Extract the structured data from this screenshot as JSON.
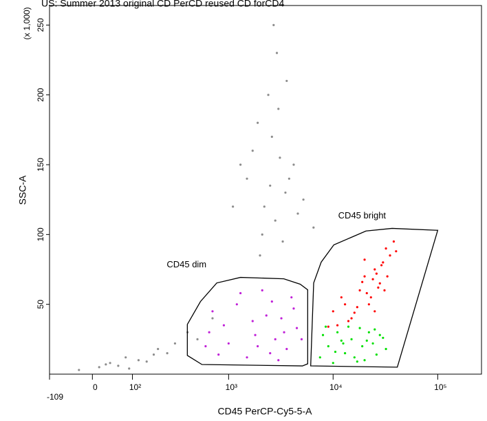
{
  "chart_data": {
    "type": "scatter",
    "title": "US: Summer 2013 original CD PerCD reused CD forCD4",
    "x_label": "CD45 PerCP-Cy5-5-A",
    "y_label": "SSC-A",
    "y_multiplier": "(x 1,000)",
    "xscale": "logicle",
    "xlim": [
      -109,
      262144
    ],
    "ylim": [
      0,
      264
    ],
    "xticks": [
      -109,
      0,
      {
        "value": 100,
        "label": "10²"
      },
      {
        "value": 1000,
        "label": "10³"
      },
      {
        "value": 10000,
        "label": "10⁴"
      },
      {
        "value": 100000,
        "label": "10⁵"
      }
    ],
    "yticks": [
      50,
      100,
      150,
      200,
      250
    ],
    "series": [
      {
        "color": "#8c8c8c",
        "x": [
          1500,
          2200,
          3100,
          2600,
          3500,
          1900,
          2800,
          4200,
          2400,
          3300,
          1700,
          5200,
          2900,
          3800,
          2100,
          3000,
          2500,
          4600,
          1300,
          3600,
          2000,
          2700,
          6500,
          1100,
          15,
          40,
          -30,
          80,
          120,
          60,
          200,
          300,
          150,
          90,
          250,
          400,
          30,
          500,
          700,
          180
        ],
        "y": [
          140,
          120,
          155,
          170,
          130,
          180,
          110,
          150,
          200,
          95,
          160,
          125,
          230,
          140,
          100,
          190,
          135,
          115,
          150,
          210,
          85,
          250,
          105,
          120,
          5,
          8,
          3,
          12,
          10,
          6,
          18,
          22,
          9,
          4,
          15,
          30,
          7,
          25,
          40,
          14
        ]
      },
      {
        "color": "#c020d8",
        "x": [
          600,
          900,
          1200,
          1800,
          2500,
          3200,
          4000,
          700,
          1500,
          2100,
          2800,
          3600,
          4500,
          1000,
          1300,
          2300,
          3000,
          800,
          1700,
          2600,
          3400,
          4200,
          650,
          1900,
          5000
        ],
        "y": [
          20,
          35,
          50,
          28,
          15,
          40,
          55,
          45,
          12,
          60,
          25,
          18,
          33,
          22,
          58,
          42,
          10,
          14,
          38,
          52,
          30,
          47,
          30,
          20,
          25
        ]
      },
      {
        "color": "#ff0000",
        "x": [
          10000,
          12000,
          15000,
          18000,
          20000,
          22000,
          25000,
          28000,
          30000,
          35000,
          14000,
          17000,
          21000,
          24000,
          27000,
          32000,
          40000,
          11000,
          13000,
          16000,
          19000,
          23000,
          26000,
          29000,
          33000,
          38000,
          9000,
          20000,
          25000,
          31000
        ],
        "y": [
          45,
          55,
          40,
          60,
          70,
          50,
          75,
          65,
          80,
          85,
          38,
          48,
          58,
          68,
          62,
          90,
          88,
          35,
          50,
          44,
          66,
          55,
          72,
          78,
          70,
          95,
          34,
          82,
          45,
          60
        ]
      },
      {
        "color": "#00e000",
        "x": [
          7500,
          9000,
          11000,
          13000,
          15000,
          18000,
          20000,
          24000,
          28000,
          32000,
          8000,
          10000,
          12000,
          14000,
          16000,
          19000,
          22000,
          26000,
          30000,
          8500,
          10500,
          17000,
          21000,
          25000,
          12500
        ],
        "y": [
          12,
          20,
          30,
          15,
          25,
          33,
          10,
          22,
          28,
          18,
          28,
          8,
          24,
          34,
          12,
          20,
          30,
          14,
          26,
          34,
          16,
          9,
          24,
          32,
          22
        ]
      }
    ],
    "gates": [
      {
        "label": "CD45 dim",
        "x": [
          398,
          535,
          769,
          1301,
          3378,
          4850,
          5715,
          5715,
          5093,
          553,
          398
        ],
        "y": [
          35.6,
          52,
          65.3,
          69.3,
          68.3,
          64.4,
          60.4,
          7.4,
          5.9,
          6.9,
          13.4
        ]
      },
      {
        "label": "CD45 bright",
        "x": [
          6105,
          6520,
          7690,
          10160,
          20620,
          36640,
          100000,
          41100
        ],
        "y": [
          5.9,
          65.3,
          80.2,
          92.6,
          102.5,
          104.4,
          103,
          5.0
        ]
      }
    ]
  }
}
